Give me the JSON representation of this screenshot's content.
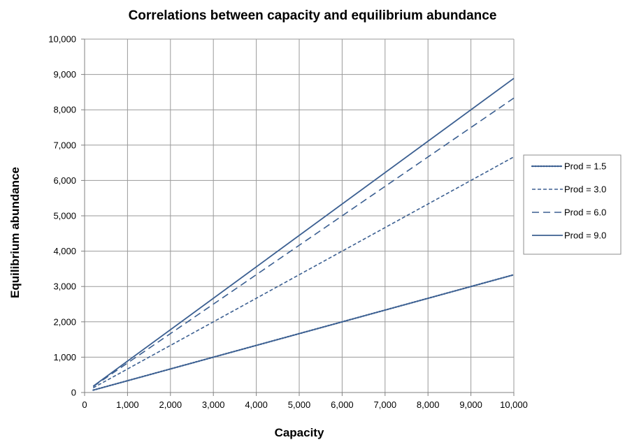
{
  "chart_data": {
    "type": "line",
    "title": "Correlations between capacity and equilibrium abundance",
    "xlabel": "Capacity",
    "ylabel": "Equilibrium abundance",
    "xlim": [
      0,
      10000
    ],
    "ylim": [
      0,
      10000
    ],
    "x_ticks": [
      "0",
      "1,000",
      "2,000",
      "3,000",
      "4,000",
      "5,000",
      "6,000",
      "7,000",
      "8,000",
      "9,000",
      "10,000"
    ],
    "y_ticks": [
      "0",
      "1,000",
      "2,000",
      "3,000",
      "4,000",
      "5,000",
      "6,000",
      "7,000",
      "8,000",
      "9,000",
      "10,000"
    ],
    "grid": true,
    "legend_position": "right",
    "line_color": "#3b5f91",
    "series": [
      {
        "name": "Prod = 1.5",
        "dash": "round-dot",
        "x": [
          200,
          10000
        ],
        "y": [
          67,
          3333
        ]
      },
      {
        "name": "Prod = 3.0",
        "dash": "short-dash",
        "x": [
          200,
          10000
        ],
        "y": [
          133,
          6667
        ]
      },
      {
        "name": "Prod = 6.0",
        "dash": "long-dash",
        "x": [
          200,
          10000
        ],
        "y": [
          167,
          8333
        ]
      },
      {
        "name": "Prod = 9.0",
        "dash": "solid",
        "x": [
          200,
          10000
        ],
        "y": [
          178,
          8889
        ]
      }
    ]
  }
}
